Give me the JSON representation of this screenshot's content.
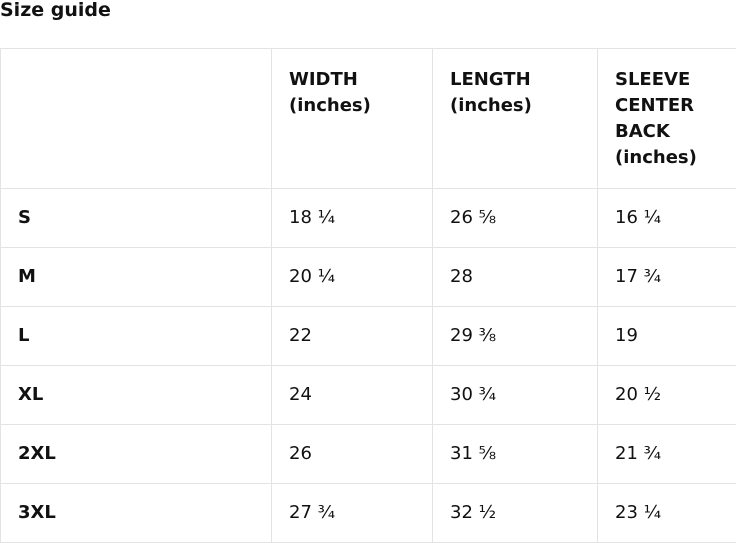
{
  "title": "Size guide",
  "table": {
    "headers": [
      "",
      "WIDTH (inches)",
      "LENGTH (inches)",
      "SLEEVE CENTER BACK (inches)"
    ],
    "rows": [
      [
        "S",
        "18 ¼",
        "26 ⅝",
        "16 ¼"
      ],
      [
        "M",
        "20 ¼",
        "28",
        "17 ¾"
      ],
      [
        "L",
        "22",
        "29 ⅜",
        "19"
      ],
      [
        "XL",
        "24",
        "30 ¾",
        "20 ½"
      ],
      [
        "2XL",
        "26",
        "31 ⅝",
        "21 ¾"
      ],
      [
        "3XL",
        "27 ¾",
        "32 ½",
        "23 ¼"
      ]
    ]
  }
}
